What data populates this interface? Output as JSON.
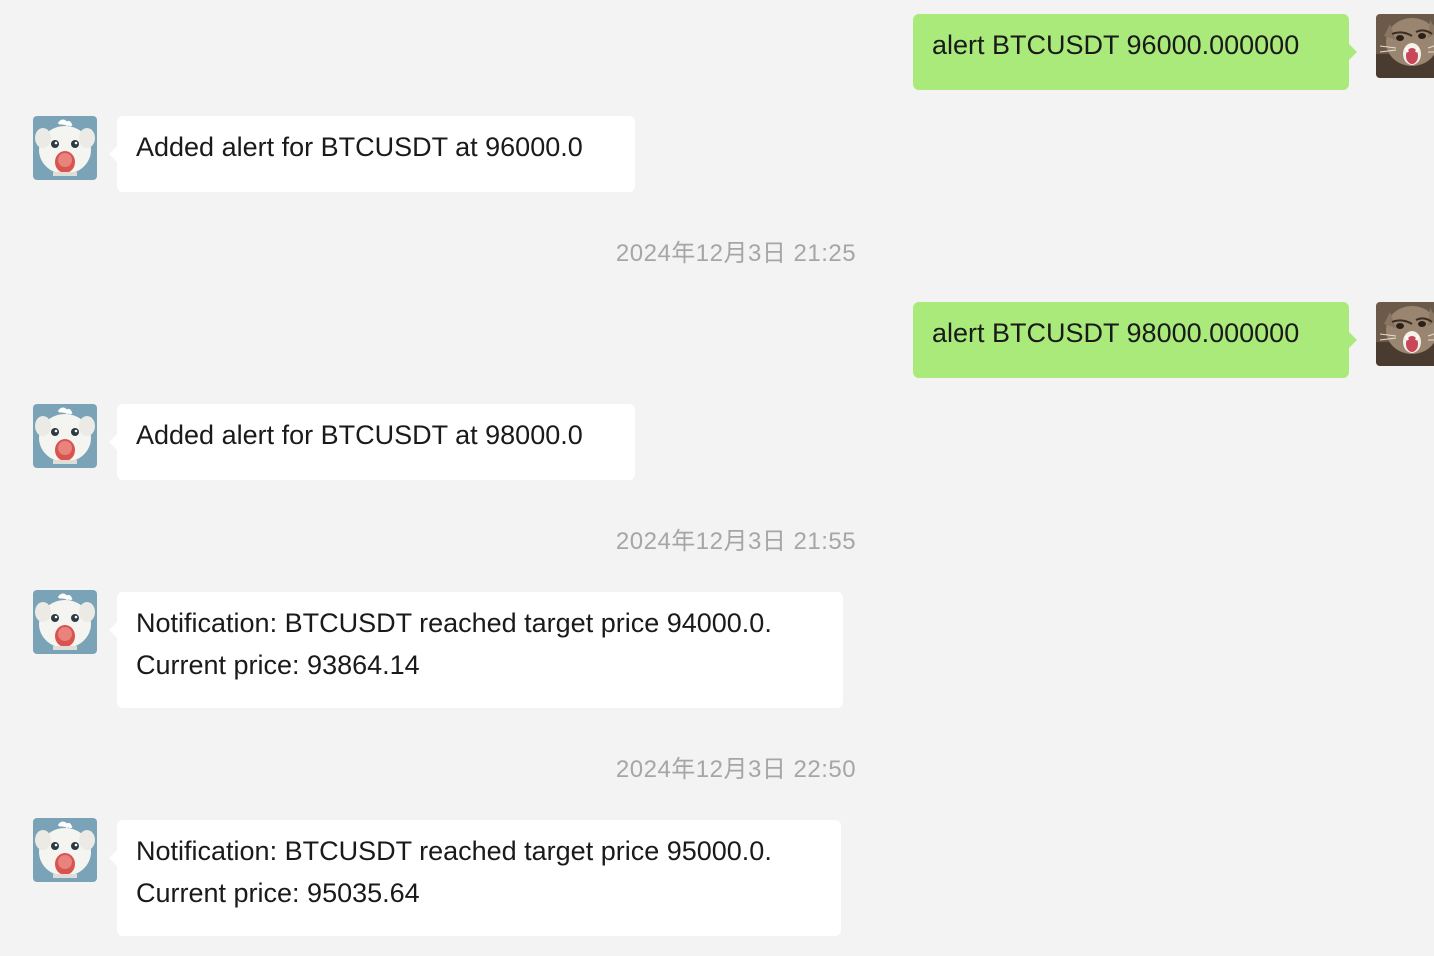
{
  "messages": [
    {
      "direction": "out",
      "avatar": "cat-avatar-icon",
      "lines": [
        "alert BTCUSDT 96000.000000"
      ]
    },
    {
      "direction": "in",
      "avatar": "bot-avatar-icon",
      "lines": [
        "Added alert for BTCUSDT at 96000.0"
      ]
    },
    {
      "type": "timestamp",
      "text": "2024年12月3日 21:25"
    },
    {
      "direction": "out",
      "avatar": "cat-avatar-icon",
      "lines": [
        "alert BTCUSDT 98000.000000"
      ]
    },
    {
      "direction": "in",
      "avatar": "bot-avatar-icon",
      "lines": [
        "Added alert for BTCUSDT at 98000.0"
      ]
    },
    {
      "type": "timestamp",
      "text": "2024年12月3日 21:55"
    },
    {
      "direction": "in",
      "avatar": "bot-avatar-icon",
      "lines": [
        "Notification: BTCUSDT reached target price 94000.0.",
        "Current price: 93864.14"
      ]
    },
    {
      "type": "timestamp",
      "text": "2024年12月3日 22:50"
    },
    {
      "direction": "in",
      "avatar": "bot-avatar-icon",
      "lines": [
        "Notification: BTCUSDT reached target price 95000.0.",
        "Current price: 95035.64"
      ]
    }
  ],
  "colors": {
    "background": "#f3f3f3",
    "outgoing_bubble": "#a9ea7a",
    "incoming_bubble": "#ffffff",
    "timestamp_text": "#a6a6a6"
  }
}
